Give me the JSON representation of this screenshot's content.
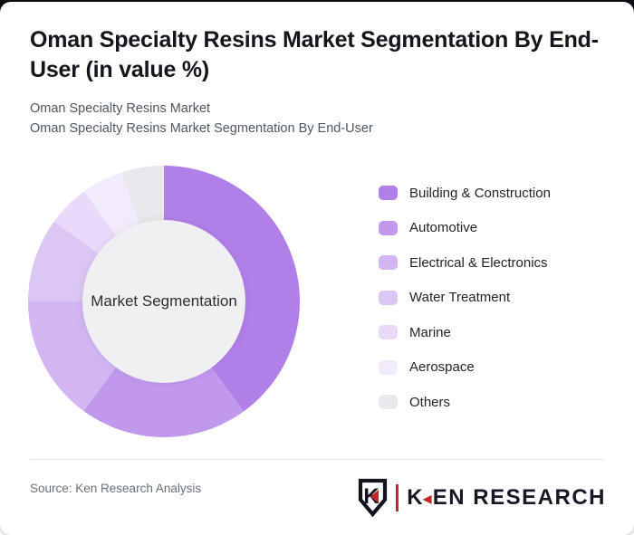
{
  "page": {
    "top_strip_color": "#0d0d12",
    "card_background": "#ffffff"
  },
  "header": {
    "title": "Oman Specialty Resins Market Segmentation By End-User (in value %)",
    "subtitle_line1": "Oman Specialty Resins Market",
    "subtitle_line2": "Oman Specialty Resins Market Segmentation By End-User"
  },
  "chart_data": {
    "type": "pie",
    "style": "donut",
    "title": "Oman Specialty Resins Market Segmentation By End-User (in value %)",
    "unit": "value %",
    "center_label": "Market Segmentation",
    "start_angle_deg": 0,
    "direction": "clockwise",
    "inner_hole_color": "#f0eff1",
    "legend_position": "right",
    "data_labels_shown": false,
    "segments": [
      {
        "label": "Building & Construction",
        "value": 40,
        "color": "#b17fe8"
      },
      {
        "label": "Automotive",
        "value": 20,
        "color": "#c199ec"
      },
      {
        "label": "Electrical & Electronics",
        "value": 15,
        "color": "#d2b5f1"
      },
      {
        "label": "Water Treatment",
        "value": 10,
        "color": "#dcc6f4"
      },
      {
        "label": "Marine",
        "value": 5,
        "color": "#e8daf8"
      },
      {
        "label": "Aerospace",
        "value": 5,
        "color": "#f2ebfb"
      },
      {
        "label": "Others",
        "value": 5,
        "color": "#e9e8ec"
      }
    ]
  },
  "footer": {
    "source_text": "Source: Ken Research Analysis",
    "logo": {
      "monogram": "K",
      "brand_first_letter": "K",
      "brand_rest": "EN RESEARCH",
      "accent_color": "#c1272d",
      "text_color": "#181824"
    }
  }
}
